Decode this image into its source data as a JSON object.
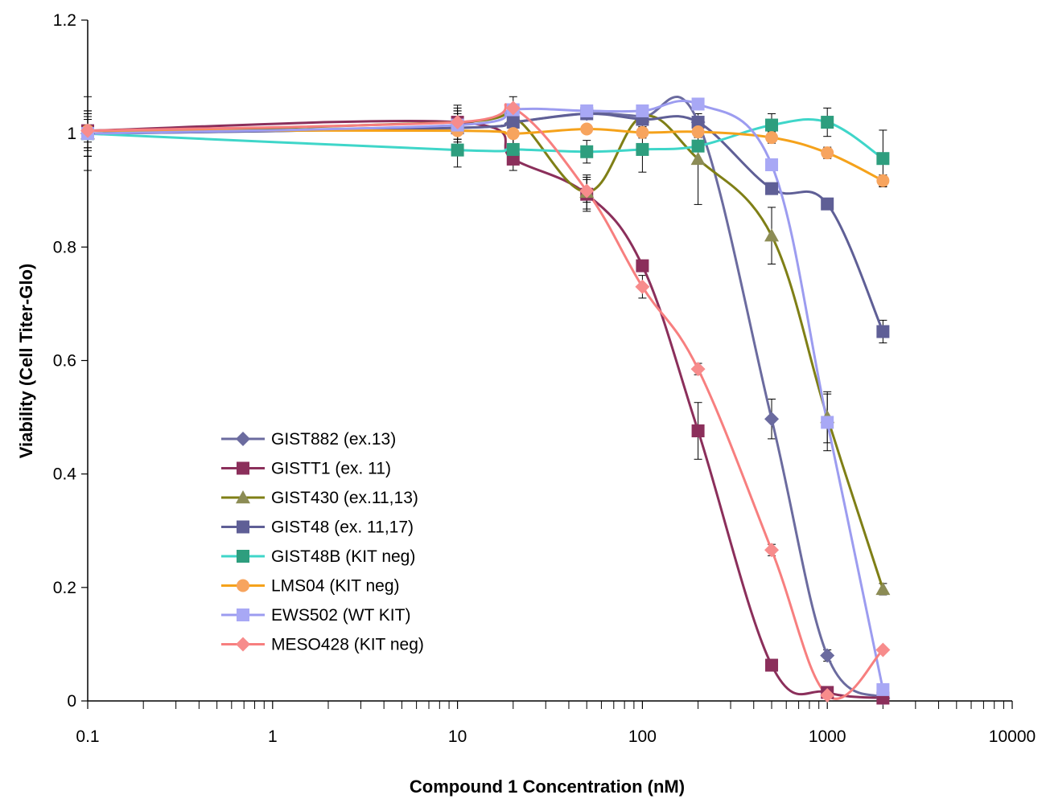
{
  "chart_data": {
    "type": "line",
    "title": "",
    "xlabel": "Compound 1 Concentration (nM)",
    "ylabel": "Viability (Cell Titer-Glo)",
    "x_scale": "log",
    "xlim": [
      0.1,
      10000
    ],
    "ylim": [
      0,
      1.2
    ],
    "x_ticks": [
      0.1,
      1,
      10,
      100,
      1000,
      10000
    ],
    "x_tick_labels": [
      "0.1",
      "1",
      "10",
      "100",
      "1000",
      "10000"
    ],
    "y_ticks": [
      0,
      0.2,
      0.4,
      0.6,
      0.8,
      1,
      1.2
    ],
    "y_tick_labels": [
      "0",
      "0.2",
      "0.4",
      "0.6",
      "0.8",
      "1",
      "1.2"
    ],
    "grid": false,
    "legend_position": "lower-left",
    "x": [
      0.1,
      10,
      20,
      50,
      100,
      200,
      500,
      1000,
      2000
    ],
    "series": [
      {
        "name": "GIST882 (ex.13)",
        "marker": "diamond",
        "color": "#6B6B9F",
        "marker_color": "#6B6B9F",
        "values": [
          1.0,
          1.01,
          1.02,
          1.035,
          1.03,
          1.02,
          0.497,
          0.08,
          0.005
        ],
        "errors": [
          0.04,
          0.01,
          0.01,
          0.0,
          0.01,
          0.01,
          0.035,
          0.01,
          0.0
        ]
      },
      {
        "name": "GISTT1 (ex. 11)",
        "marker": "square",
        "color": "#8B2F5B",
        "marker_color": "#8B2F5B",
        "values": [
          1.005,
          1.02,
          0.955,
          0.893,
          0.767,
          0.476,
          0.063,
          0.015,
          0.005
        ],
        "errors": [
          0.03,
          0.02,
          0.02,
          0.03,
          0.01,
          0.05,
          0.0,
          0.0,
          0.0
        ]
      },
      {
        "name": "GIST430 (ex.11,13)",
        "marker": "triangle",
        "color": "#7F7F16",
        "marker_color": "#8C8C55",
        "values": [
          1.0,
          1.02,
          1.03,
          0.897,
          1.03,
          0.955,
          0.82,
          0.5,
          0.197
        ],
        "errors": [
          0.065,
          0.02,
          0.01,
          0.03,
          0.02,
          0.08,
          0.05,
          0.045,
          0.01
        ]
      },
      {
        "name": "GIST48 (ex. 11,17)",
        "marker": "square",
        "color": "#5F5F96",
        "marker_color": "#5F5F96",
        "values": [
          1.0,
          1.01,
          1.02,
          1.035,
          1.025,
          1.02,
          0.903,
          0.876,
          0.651
        ],
        "errors": [
          0.04,
          0.02,
          0.01,
          0.0,
          0.02,
          0.01,
          0.0,
          0.0,
          0.02
        ]
      },
      {
        "name": "GIST48B (KIT neg)",
        "marker": "square",
        "color": "#3FD6C9",
        "marker_color": "#2E9E7E",
        "values": [
          1.0,
          0.971,
          0.972,
          0.968,
          0.972,
          0.978,
          1.015,
          1.02,
          0.956
        ],
        "errors": [
          0.03,
          0.03,
          0.02,
          0.02,
          0.04,
          0.01,
          0.02,
          0.025,
          0.05
        ]
      },
      {
        "name": "LMS04 (KIT neg)",
        "marker": "circle",
        "color": "#F5A21B",
        "marker_color": "#F7A45E",
        "values": [
          1.005,
          1.005,
          1.0,
          1.008,
          1.002,
          1.003,
          0.993,
          0.966,
          0.917
        ],
        "errors": [
          0.03,
          0.03,
          0.02,
          0.0,
          0.01,
          0.01,
          0.01,
          0.01,
          0.01
        ]
      },
      {
        "name": "EWS502 (WT KIT)",
        "marker": "square",
        "color": "#9C9CF0",
        "marker_color": "#A8A8F5",
        "values": [
          1.0,
          1.015,
          1.042,
          1.04,
          1.04,
          1.052,
          0.945,
          0.491,
          0.02
        ],
        "errors": [
          0.04,
          0.03,
          0.01,
          0.0,
          0.01,
          0.01,
          0.0,
          0.05,
          0.0
        ]
      },
      {
        "name": "MESO428 (KIT neg)",
        "marker": "diamond",
        "color": "#F77F7F",
        "marker_color": "#F78C8C",
        "values": [
          1.005,
          1.02,
          1.045,
          0.899,
          0.73,
          0.585,
          0.266,
          0.01,
          0.09
        ],
        "errors": [
          0.02,
          0.03,
          0.02,
          0.02,
          0.02,
          0.01,
          0.01,
          0.0,
          0.0
        ]
      }
    ]
  }
}
